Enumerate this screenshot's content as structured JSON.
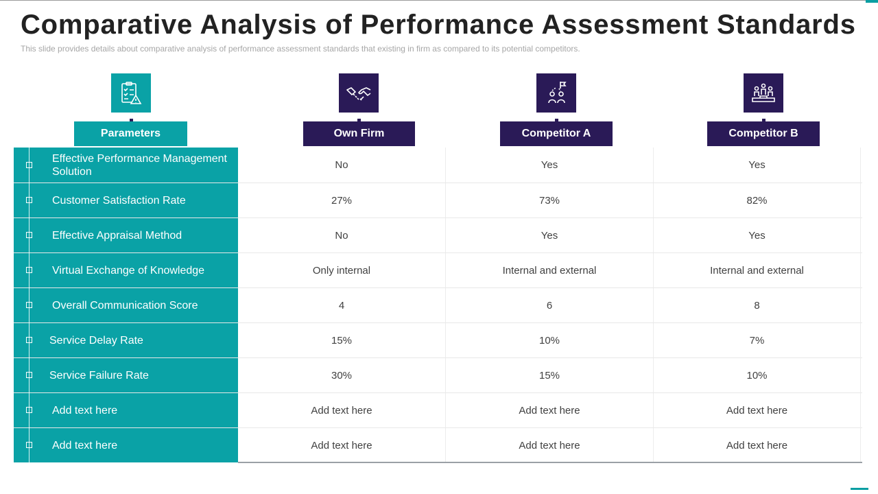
{
  "title": "Comparative Analysis of Performance Assessment Standards",
  "subtitle": "This slide provides  details about comparative  analysis of performance  assessment standards that existing in firm as compared  to its potential competitors.",
  "colors": {
    "teal": "#0aa2a6",
    "navy": "#2a1a57"
  },
  "columns": [
    {
      "label": "Parameters",
      "icon": "checklist-warning-icon"
    },
    {
      "label": "Own Firm",
      "icon": "handshake-icon"
    },
    {
      "label": "Competitor A",
      "icon": "team-flag-icon"
    },
    {
      "label": "Competitor B",
      "icon": "podium-people-icon"
    }
  ],
  "rows": [
    {
      "parameter": "Effective Performance Management Solution",
      "own_firm": "No",
      "competitor_a": "Yes",
      "competitor_b": "Yes"
    },
    {
      "parameter": "Customer Satisfaction Rate",
      "own_firm": "27%",
      "competitor_a": "73%",
      "competitor_b": "82%"
    },
    {
      "parameter": "Effective Appraisal Method",
      "own_firm": "No",
      "competitor_a": "Yes",
      "competitor_b": "Yes"
    },
    {
      "parameter": "Virtual Exchange  of Knowledge",
      "own_firm": "Only internal",
      "competitor_a": "Internal  and external",
      "competitor_b": "Internal  and external"
    },
    {
      "parameter": "Overall Communication Score",
      "own_firm": "4",
      "competitor_a": "6",
      "competitor_b": "8"
    },
    {
      "parameter": "Service Delay Rate",
      "own_firm": "15%",
      "competitor_a": "10%",
      "competitor_b": "7%"
    },
    {
      "parameter": "Service Failure Rate",
      "own_firm": "30%",
      "competitor_a": "15%",
      "competitor_b": "10%"
    },
    {
      "parameter": "Add text here",
      "own_firm": "Add text here",
      "competitor_a": "Add text here",
      "competitor_b": "Add text here"
    },
    {
      "parameter": "Add text here",
      "own_firm": "Add text here",
      "competitor_a": "Add text here",
      "competitor_b": "Add text here"
    }
  ]
}
